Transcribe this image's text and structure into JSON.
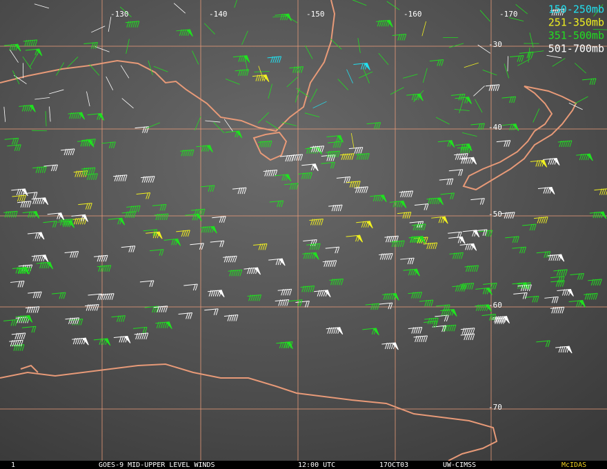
{
  "map": {
    "longitude_labels": [
      -130,
      -140,
      -150,
      -160,
      -170
    ],
    "latitude_labels": [
      -30,
      -40,
      -50,
      -60,
      -70
    ],
    "legend": [
      {
        "label": "150-250mb",
        "color": "#22e0f0"
      },
      {
        "label": "251-350mb",
        "color": "#f0f020"
      },
      {
        "label": "351-500mb",
        "color": "#20e020"
      },
      {
        "label": "501-700mb",
        "color": "#ffffff"
      }
    ],
    "footer": {
      "frame": "1",
      "product": "GOES-9 MID-UPPER LEVEL WINDS",
      "time": "12:00 UTC",
      "date": "17OCT03",
      "source": "UW-CIMSS",
      "system": "McIDAS"
    }
  }
}
